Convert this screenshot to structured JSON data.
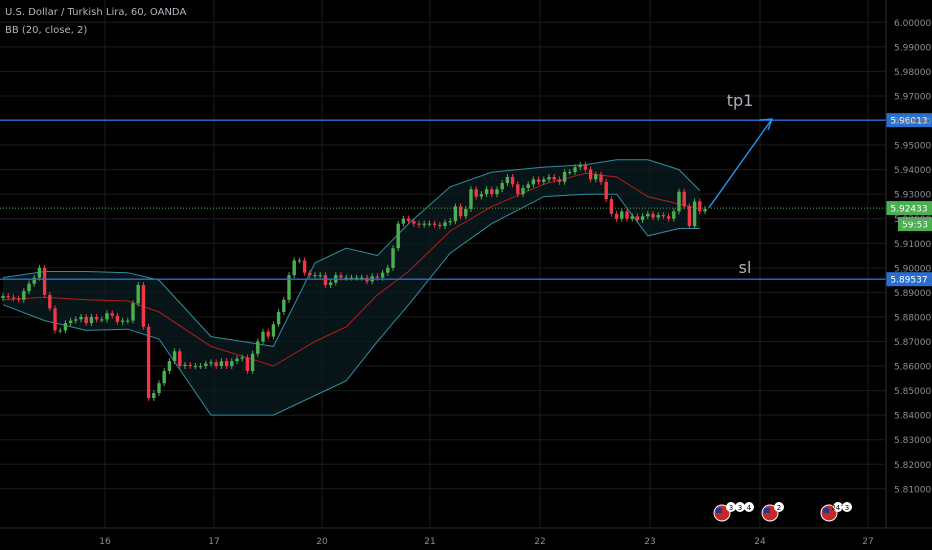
{
  "header": {
    "title": "U.S. Dollar / Turkish Lira, 60, OANDA",
    "indicator": "BB (20, close, 2)"
  },
  "colors": {
    "background": "#000000",
    "grid": "#1c1c1c",
    "up": "#4caf50",
    "down": "#f23645",
    "band": "#2e8fa1",
    "basis": "#b71c1c",
    "level_line": "#2a6fd0",
    "axis_text": "#8a8e97",
    "drawing_text": "#aab0bb",
    "arrow": "#2196f3",
    "current_label": "#4caf50"
  },
  "chart_data": {
    "type": "candlestick",
    "symbol": "U.S. Dollar / Turkish Lira, 60, OANDA",
    "indicator": "BB (20, close, 2)",
    "ylim": [
      5.803,
      6.005
    ],
    "y_ticks": [
      "6.00000",
      "5.99000",
      "5.98000",
      "5.97000",
      "5.96000",
      "5.95000",
      "5.94000",
      "5.93000",
      "5.92000",
      "5.91000",
      "5.90000",
      "5.89000",
      "5.88000",
      "5.87000",
      "5.86000",
      "5.85000",
      "5.84000",
      "5.83000",
      "5.82000",
      "5.81000"
    ],
    "x_ticks": [
      "16",
      "17",
      "20",
      "21",
      "22",
      "23",
      "24",
      "27"
    ],
    "horizontal_levels": [
      {
        "label": "tp1",
        "price_label": "5.96013",
        "value": 5.96013
      },
      {
        "label": "sl",
        "price_label": "5.89537",
        "value": 5.89537
      }
    ],
    "current_price": {
      "label": "5.92433",
      "value": 5.92433,
      "countdown": "59:53"
    },
    "events": [
      {
        "day": "23",
        "label": "3"
      },
      {
        "day": "23",
        "label": "3"
      },
      {
        "day": "23",
        "label": "4"
      },
      {
        "day": "24",
        "label": "2"
      },
      {
        "day": "27",
        "label": "241"
      },
      {
        "day": "27",
        "label": "3"
      }
    ],
    "candles_close": [
      5.8885,
      5.888,
      5.8875,
      5.887,
      5.8905,
      5.8935,
      5.896,
      5.9,
      5.889,
      5.8835,
      5.8745,
      5.8745,
      5.8775,
      5.8785,
      5.879,
      5.88,
      5.8775,
      5.88,
      5.879,
      5.879,
      5.8815,
      5.8805,
      5.878,
      5.8785,
      5.8785,
      5.8855,
      5.893,
      5.876,
      5.847,
      5.849,
      5.853,
      5.858,
      5.862,
      5.866,
      5.86,
      5.8605,
      5.86,
      5.86,
      5.86,
      5.861,
      5.8615,
      5.86,
      5.862,
      5.86,
      5.862,
      5.863,
      5.8635,
      5.858,
      5.865,
      5.87,
      5.874,
      5.872,
      5.877,
      5.882,
      5.887,
      5.897,
      5.903,
      5.903,
      5.898,
      5.897,
      5.897,
      5.897,
      5.893,
      5.894,
      5.897,
      5.896,
      5.896,
      5.896,
      5.896,
      5.896,
      5.8945,
      5.8965,
      5.896,
      5.898,
      5.9,
      5.908,
      5.918,
      5.92,
      5.919,
      5.918,
      5.9175,
      5.918,
      5.918,
      5.9175,
      5.917,
      5.9185,
      5.919,
      5.925,
      5.921,
      5.924,
      5.932,
      5.929,
      5.93,
      5.932,
      5.93,
      5.932,
      5.9345,
      5.937,
      5.934,
      5.93,
      5.9325,
      5.934,
      5.936,
      5.935,
      5.936,
      5.937,
      5.936,
      5.935,
      5.939,
      5.939,
      5.941,
      5.942,
      5.94,
      5.936,
      5.938,
      5.935,
      5.928,
      5.922,
      5.92,
      5.923,
      5.92,
      5.921,
      5.9195,
      5.921,
      5.922,
      5.9205,
      5.9215,
      5.921,
      5.92,
      5.923,
      5.931,
      5.925,
      5.917,
      5.927,
      5.923,
      5.924
    ],
    "bb_upper_points": [
      [
        0,
        5.896
      ],
      [
        8,
        5.8985
      ],
      [
        16,
        5.8985
      ],
      [
        24,
        5.898
      ],
      [
        30,
        5.895
      ],
      [
        40,
        5.872
      ],
      [
        52,
        5.868
      ],
      [
        60,
        5.902
      ],
      [
        66,
        5.908
      ],
      [
        72,
        5.905
      ],
      [
        78,
        5.918
      ],
      [
        86,
        5.933
      ],
      [
        94,
        5.939
      ],
      [
        104,
        5.941
      ],
      [
        112,
        5.942
      ],
      [
        118,
        5.944
      ],
      [
        124,
        5.944
      ],
      [
        130,
        5.94
      ],
      [
        134,
        5.9315
      ]
    ],
    "bb_lower_points": [
      [
        0,
        5.885
      ],
      [
        8,
        5.8785
      ],
      [
        16,
        5.8745
      ],
      [
        24,
        5.875
      ],
      [
        30,
        5.871
      ],
      [
        40,
        5.84
      ],
      [
        52,
        5.84
      ],
      [
        60,
        5.848
      ],
      [
        66,
        5.854
      ],
      [
        72,
        5.87
      ],
      [
        78,
        5.885
      ],
      [
        86,
        5.906
      ],
      [
        94,
        5.918
      ],
      [
        104,
        5.929
      ],
      [
        112,
        5.93
      ],
      [
        118,
        5.93
      ],
      [
        124,
        5.913
      ],
      [
        130,
        5.916
      ],
      [
        134,
        5.916
      ]
    ],
    "bb_basis_points": [
      [
        0,
        5.887
      ],
      [
        8,
        5.888
      ],
      [
        16,
        5.887
      ],
      [
        24,
        5.8865
      ],
      [
        30,
        5.882
      ],
      [
        40,
        5.868
      ],
      [
        52,
        5.86
      ],
      [
        60,
        5.87
      ],
      [
        66,
        5.876
      ],
      [
        72,
        5.889
      ],
      [
        78,
        5.8985
      ],
      [
        86,
        5.915
      ],
      [
        94,
        5.925
      ],
      [
        104,
        5.934
      ],
      [
        112,
        5.9385
      ],
      [
        118,
        5.937
      ],
      [
        124,
        5.929
      ],
      [
        130,
        5.926
      ],
      [
        134,
        5.924
      ]
    ]
  }
}
